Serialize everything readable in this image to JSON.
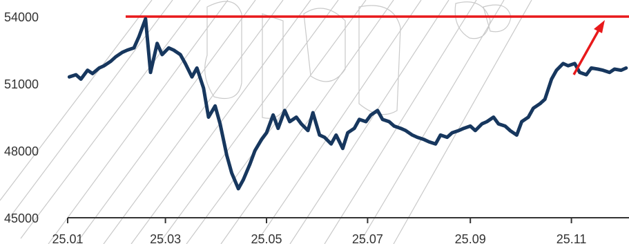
{
  "chart_data": {
    "type": "line",
    "title": "",
    "xlabel": "",
    "ylabel": "",
    "ylim": [
      45000,
      55000
    ],
    "y_ticks": [
      "54000",
      "51000",
      "48000",
      "45000"
    ],
    "y_tick_values": [
      54000,
      51000,
      48000,
      45000
    ],
    "x_ticks": [
      "25.01",
      "25.03",
      "25.05",
      "25.07",
      "25.09",
      "25.11"
    ],
    "x_tick_values": [
      "2025-01-01",
      "2025-03-01",
      "2025-05-01",
      "2025-07-01",
      "2025-09-01",
      "2025-11-01"
    ],
    "grid": false,
    "legend": "none",
    "colors": {
      "series": "#17375e",
      "annotation": "#e8191b",
      "axis": "#333333",
      "watermark": "#c9c9c9"
    },
    "series": [
      {
        "name": "",
        "x": [
          "2025-01-02",
          "2025-01-06",
          "2025-01-09",
          "2025-01-13",
          "2025-01-16",
          "2025-01-20",
          "2025-01-23",
          "2025-01-27",
          "2025-01-30",
          "2025-02-03",
          "2025-02-06",
          "2025-02-10",
          "2025-02-13",
          "2025-02-17",
          "2025-02-20",
          "2025-02-24",
          "2025-02-27",
          "2025-03-03",
          "2025-03-06",
          "2025-03-10",
          "2025-03-13",
          "2025-03-17",
          "2025-03-20",
          "2025-03-24",
          "2025-03-27",
          "2025-03-31",
          "2025-04-03",
          "2025-04-07",
          "2025-04-10",
          "2025-04-14",
          "2025-04-17",
          "2025-04-21",
          "2025-04-24",
          "2025-04-28",
          "2025-05-01",
          "2025-05-05",
          "2025-05-08",
          "2025-05-12",
          "2025-05-15",
          "2025-05-19",
          "2025-05-22",
          "2025-05-26",
          "2025-05-29",
          "2025-06-02",
          "2025-06-05",
          "2025-06-09",
          "2025-06-12",
          "2025-06-16",
          "2025-06-19",
          "2025-06-23",
          "2025-06-26",
          "2025-06-30",
          "2025-07-03",
          "2025-07-07",
          "2025-07-10",
          "2025-07-14",
          "2025-07-17",
          "2025-07-21",
          "2025-07-24",
          "2025-07-28",
          "2025-07-31",
          "2025-08-04",
          "2025-08-07",
          "2025-08-11",
          "2025-08-14",
          "2025-08-18",
          "2025-08-21",
          "2025-08-25",
          "2025-08-28",
          "2025-09-01",
          "2025-09-04",
          "2025-09-08",
          "2025-09-11",
          "2025-09-15",
          "2025-09-18",
          "2025-09-22",
          "2025-09-25",
          "2025-09-29",
          "2025-10-02",
          "2025-10-06",
          "2025-10-09",
          "2025-10-13",
          "2025-10-16",
          "2025-10-20",
          "2025-10-23",
          "2025-10-27",
          "2025-10-30",
          "2025-11-03",
          "2025-11-06",
          "2025-11-10",
          "2025-11-13",
          "2025-11-17",
          "2025-11-20",
          "2025-11-24",
          "2025-11-27",
          "2025-12-01",
          "2025-12-04"
        ],
        "values": [
          51300,
          51400,
          51200,
          51600,
          51450,
          51700,
          51800,
          52000,
          52200,
          52400,
          52500,
          52600,
          53100,
          53900,
          51500,
          52800,
          52300,
          52600,
          52500,
          52300,
          51900,
          51300,
          51700,
          50800,
          49500,
          50000,
          49200,
          47800,
          47000,
          46300,
          46700,
          47400,
          48000,
          48500,
          48800,
          49600,
          49000,
          49800,
          49300,
          49500,
          49200,
          48900,
          49700,
          48700,
          48600,
          48300,
          48700,
          48100,
          48800,
          49000,
          49400,
          49300,
          49600,
          49800,
          49400,
          49300,
          49100,
          49000,
          48900,
          48700,
          48600,
          48500,
          48400,
          48300,
          48700,
          48600,
          48800,
          48900,
          49000,
          49100,
          48900,
          49200,
          49300,
          49500,
          49200,
          49100,
          48900,
          48700,
          49300,
          49500,
          49900,
          50100,
          50300,
          51200,
          51600,
          51900,
          51800,
          51900,
          51500,
          51400,
          51700,
          51650,
          51600,
          51500,
          51650,
          51600,
          51700
        ]
      }
    ],
    "annotations": [
      {
        "type": "horizontal-line",
        "y": 54000
      },
      {
        "type": "arrow",
        "from": {
          "x": "2025-11-01",
          "y": 51400
        },
        "to": {
          "x": "2025-11-20",
          "y": 53800
        }
      }
    ]
  }
}
